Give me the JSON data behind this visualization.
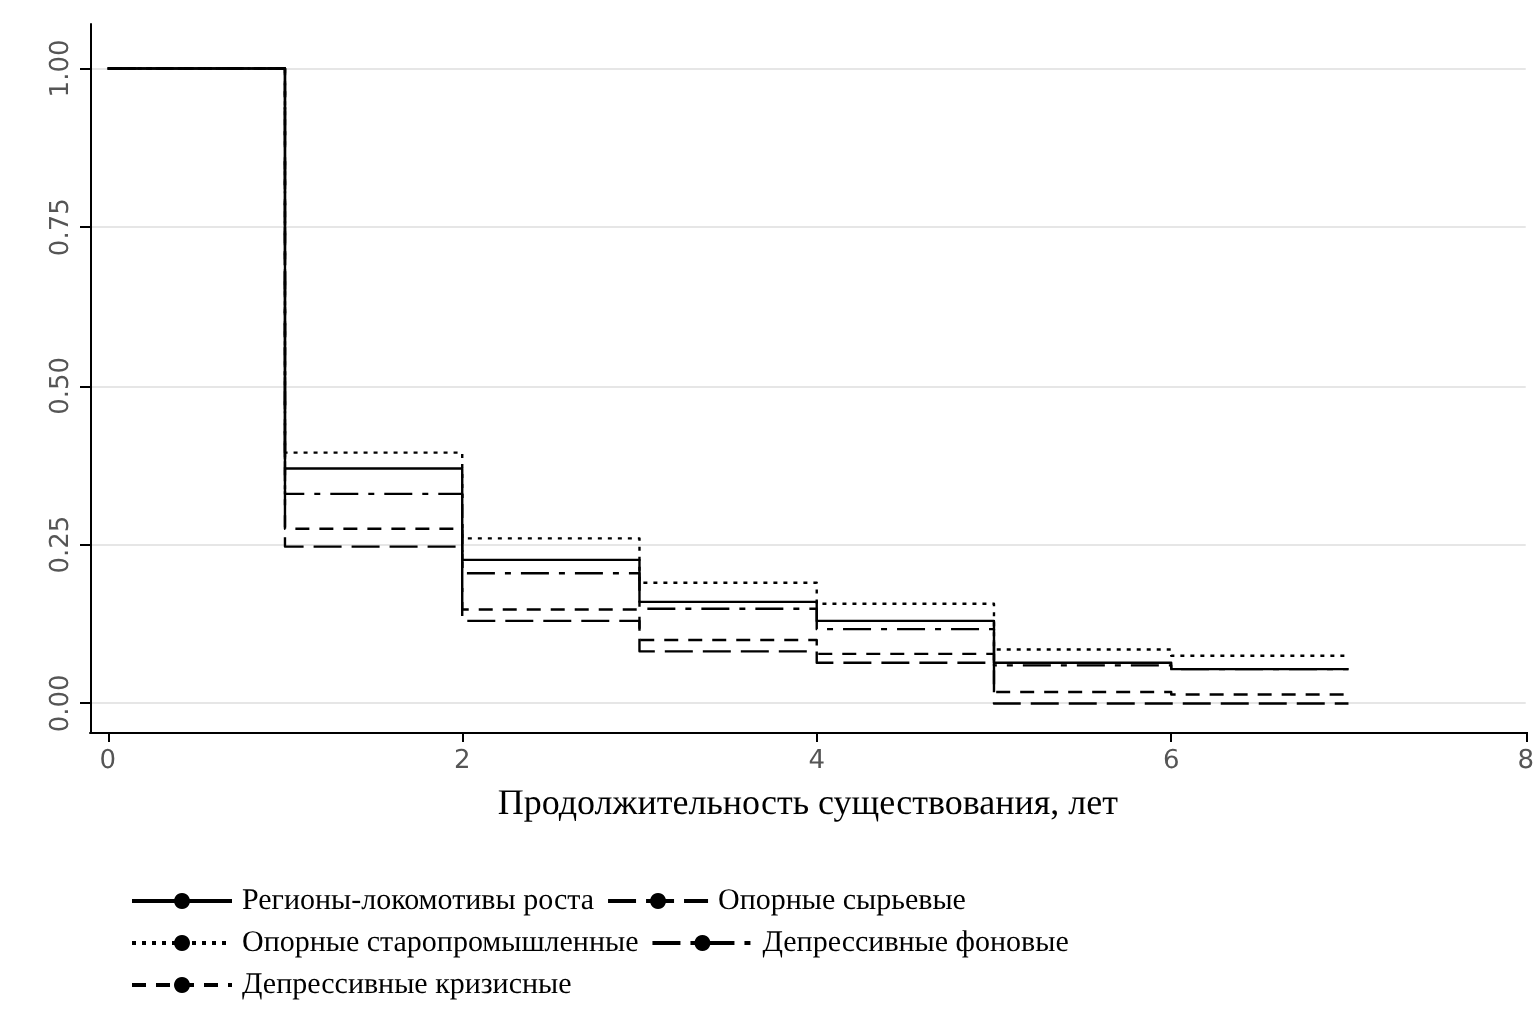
{
  "chart_data": {
    "type": "step",
    "xlabel": "Продолжительность существования, лет",
    "x": [
      0,
      1,
      2,
      3,
      4,
      5,
      6,
      7
    ],
    "series": [
      {
        "name": "Регионы-локомотивы роста",
        "color": "#000000",
        "line_style": "solid",
        "values": [
          1,
          0.37,
          0.226,
          0.16,
          0.13,
          0.064,
          0.054,
          0.054
        ]
      },
      {
        "name": "Опорные сырьевые",
        "color": "#000000",
        "line_style": "longdash",
        "values": [
          1,
          0.247,
          0.13,
          0.082,
          0.064,
          0.0,
          0.0,
          0.0
        ]
      },
      {
        "name": "Опорные старопромышленные",
        "color": "#000000",
        "line_style": "dotted",
        "values": [
          1,
          0.395,
          0.26,
          0.19,
          0.157,
          0.085,
          0.075,
          0.075
        ]
      },
      {
        "name": "Депрессивные фоновые",
        "color": "#000000",
        "line_style": "dashdot",
        "values": [
          1,
          0.33,
          0.205,
          0.149,
          0.117,
          0.06,
          0.054,
          0.054
        ]
      },
      {
        "name": "Депрессивные кризисные",
        "color": "#000000",
        "line_style": "dashed",
        "values": [
          1,
          0.275,
          0.148,
          0.1,
          0.078,
          0.018,
          0.014,
          0.014
        ]
      }
    ],
    "xlim": [
      -0.1,
      8
    ],
    "xticks": [
      0,
      2,
      4,
      6,
      8
    ],
    "ylim": [
      -0.045,
      1.07
    ],
    "yticks": [
      {
        "value": 0,
        "label": "0.00"
      },
      {
        "value": 0.25,
        "label": "0.25"
      },
      {
        "value": 0.5,
        "label": "0.50"
      },
      {
        "value": 0.75,
        "label": "0.75"
      },
      {
        "value": 1,
        "label": "1.00"
      }
    ],
    "grid": "y",
    "legend": "bottom left",
    "marker": "none"
  }
}
